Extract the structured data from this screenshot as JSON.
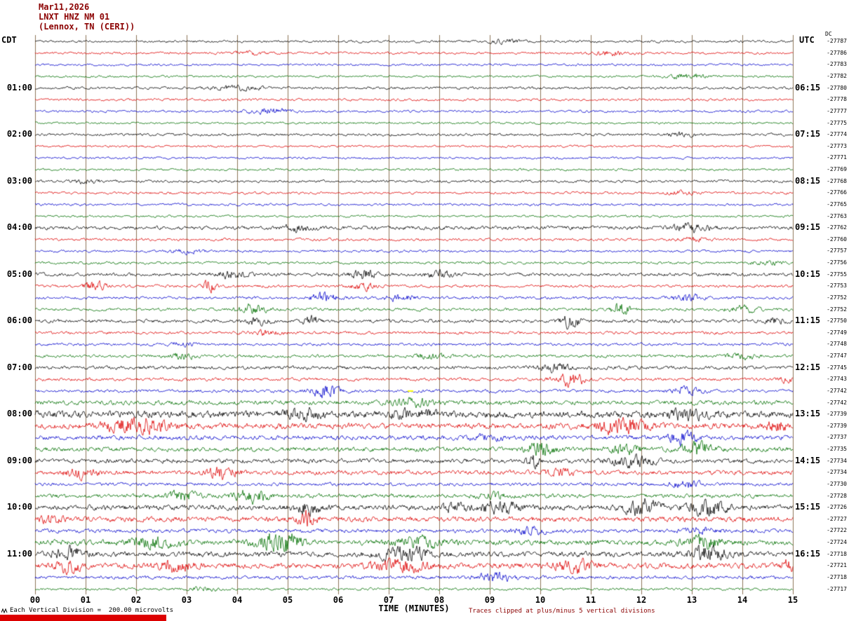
{
  "header": {
    "date": "Mar11,2026",
    "station": "LNXT HNZ NM 01",
    "location": "(Lennox, TN (CERI))",
    "left_tz": "CDT",
    "right_tz": "UTC",
    "dc_label": "DC"
  },
  "footer": {
    "scale_note": "Each Vertical Division =  200.00 microvolts",
    "xlabel": "TIME (MINUTES)",
    "clip_note": "Traces clipped at plus/minus 5 vertical divisions"
  },
  "colors": {
    "black": "#000000",
    "red": "#dd0000",
    "blue": "#0000cc",
    "green": "#007000",
    "grid": "#8d7558",
    "title": "#8b0000",
    "marker_yellow": "#ffff00"
  },
  "chart_data": {
    "type": "line",
    "subtype": "helicorder-seismogram",
    "title": "LNXT HNZ NM 01 (Lennox, TN (CERI)) Mar11,2026",
    "xlabel": "TIME (MINUTES)",
    "x_range_minutes": [
      0,
      15
    ],
    "x_ticks": [
      "00",
      "01",
      "02",
      "03",
      "04",
      "05",
      "06",
      "07",
      "08",
      "09",
      "10",
      "11",
      "12",
      "13",
      "14",
      "15"
    ],
    "minutes_per_row": 15,
    "rows_per_hour": 4,
    "left_time_labels": [
      "01:00",
      "02:00",
      "03:00",
      "04:00",
      "05:00",
      "06:00",
      "07:00",
      "08:00",
      "09:00",
      "10:00",
      "11:00"
    ],
    "right_time_labels": [
      "06:15",
      "07:15",
      "08:15",
      "09:15",
      "10:15",
      "11:15",
      "12:15",
      "13:15",
      "14:15",
      "15:15",
      "16:15"
    ],
    "markers": [
      {
        "row": 30,
        "min": 7.43,
        "color": "#ffff00"
      }
    ],
    "rows": [
      {
        "offset": "-27787",
        "color": "black",
        "amp": 1.3,
        "events": [
          [
            9.3,
            2,
            0.2
          ]
        ]
      },
      {
        "offset": "-27786",
        "color": "red",
        "amp": 1.3,
        "events": [
          [
            11.4,
            2,
            0.3
          ],
          [
            4.2,
            2,
            0.2
          ]
        ]
      },
      {
        "offset": "-27783",
        "color": "blue",
        "amp": 1.2,
        "events": []
      },
      {
        "offset": "-27782",
        "color": "green",
        "amp": 1.2,
        "events": [
          [
            12.9,
            3,
            0.25
          ]
        ]
      },
      {
        "cdt": "01:00",
        "utc": "06:15",
        "offset": "-27780",
        "color": "black",
        "amp": 1.4,
        "events": [
          [
            4.0,
            2,
            0.3
          ]
        ]
      },
      {
        "offset": "-27778",
        "color": "red",
        "amp": 1.3,
        "events": []
      },
      {
        "offset": "-27777",
        "color": "blue",
        "amp": 1.3,
        "events": [
          [
            4.6,
            3,
            0.3
          ]
        ]
      },
      {
        "offset": "-27775",
        "color": "green",
        "amp": 1.2,
        "events": []
      },
      {
        "cdt": "02:00",
        "utc": "07:15",
        "offset": "-27774",
        "color": "black",
        "amp": 1.4,
        "events": [
          [
            12.8,
            2,
            0.2
          ]
        ]
      },
      {
        "offset": "-27773",
        "color": "red",
        "amp": 1.2,
        "events": []
      },
      {
        "offset": "-27771",
        "color": "blue",
        "amp": 1.2,
        "events": []
      },
      {
        "offset": "-27769",
        "color": "green",
        "amp": 1.2,
        "events": []
      },
      {
        "cdt": "03:00",
        "utc": "08:15",
        "offset": "-27768",
        "color": "black",
        "amp": 1.4,
        "events": [
          [
            1.0,
            2,
            0.2
          ]
        ]
      },
      {
        "offset": "-27766",
        "color": "red",
        "amp": 1.3,
        "events": [
          [
            12.8,
            2,
            0.2
          ]
        ]
      },
      {
        "offset": "-27765",
        "color": "blue",
        "amp": 1.3,
        "events": []
      },
      {
        "offset": "-27763",
        "color": "green",
        "amp": 1.2,
        "events": []
      },
      {
        "cdt": "04:00",
        "utc": "09:15",
        "offset": "-27762",
        "color": "black",
        "amp": 2.0,
        "events": [
          [
            5.2,
            3,
            0.25
          ],
          [
            13.0,
            4,
            0.25
          ]
        ]
      },
      {
        "offset": "-27760",
        "color": "red",
        "amp": 1.4,
        "events": [
          [
            13.0,
            2,
            0.2
          ]
        ]
      },
      {
        "offset": "-27757",
        "color": "blue",
        "amp": 1.3,
        "events": [
          [
            3.0,
            2,
            0.2
          ]
        ]
      },
      {
        "offset": "-27756",
        "color": "green",
        "amp": 1.4,
        "events": [
          [
            14.5,
            3,
            0.2
          ]
        ]
      },
      {
        "cdt": "05:00",
        "utc": "10:15",
        "offset": "-27755",
        "color": "black",
        "amp": 1.8,
        "events": [
          [
            3.9,
            4,
            0.2
          ],
          [
            6.5,
            5,
            0.15
          ],
          [
            8.0,
            4,
            0.2
          ]
        ]
      },
      {
        "offset": "-27753",
        "color": "red",
        "amp": 1.5,
        "events": [
          [
            1.2,
            5,
            0.15
          ],
          [
            3.45,
            9,
            0.08
          ],
          [
            6.5,
            4,
            0.15
          ]
        ]
      },
      {
        "offset": "-27752",
        "color": "blue",
        "amp": 1.5,
        "events": [
          [
            5.75,
            5,
            0.2
          ],
          [
            7.2,
            3,
            0.2
          ],
          [
            12.9,
            4,
            0.2
          ]
        ]
      },
      {
        "offset": "-27752",
        "color": "green",
        "amp": 1.6,
        "events": [
          [
            4.3,
            5,
            0.2
          ],
          [
            11.6,
            8,
            0.12
          ],
          [
            14.0,
            3,
            0.2
          ]
        ]
      },
      {
        "cdt": "06:00",
        "utc": "11:15",
        "offset": "-27750",
        "color": "black",
        "amp": 1.8,
        "events": [
          [
            4.4,
            4,
            0.15
          ],
          [
            5.45,
            7,
            0.1
          ],
          [
            10.6,
            8,
            0.12
          ],
          [
            14.6,
            3,
            0.15
          ]
        ]
      },
      {
        "offset": "-27749",
        "color": "red",
        "amp": 1.6,
        "events": [
          [
            4.5,
            3,
            0.2
          ]
        ]
      },
      {
        "offset": "-27748",
        "color": "blue",
        "amp": 1.5,
        "events": [
          [
            2.9,
            2,
            0.2
          ]
        ]
      },
      {
        "offset": "-27747",
        "color": "green",
        "amp": 1.6,
        "events": [
          [
            2.9,
            3,
            0.2
          ],
          [
            7.8,
            3,
            0.2
          ],
          [
            14.0,
            3,
            0.2
          ]
        ]
      },
      {
        "cdt": "07:00",
        "utc": "12:15",
        "offset": "-27745",
        "color": "black",
        "amp": 1.9,
        "events": [
          [
            10.3,
            4,
            0.25
          ]
        ]
      },
      {
        "offset": "-27743",
        "color": "red",
        "amp": 1.7,
        "events": [
          [
            10.6,
            7,
            0.2
          ],
          [
            14.9,
            4,
            0.1
          ]
        ]
      },
      {
        "offset": "-27742",
        "color": "blue",
        "amp": 1.7,
        "events": [
          [
            5.75,
            8,
            0.18
          ],
          [
            12.9,
            4,
            0.2
          ]
        ]
      },
      {
        "offset": "-27742",
        "color": "green",
        "amp": 2.4,
        "events": [
          [
            7.5,
            4,
            0.3
          ]
        ]
      },
      {
        "cdt": "08:00",
        "utc": "13:15",
        "offset": "-27739",
        "color": "black",
        "amp": 3.8,
        "events": [
          [
            5.3,
            4,
            0.3
          ],
          [
            7.5,
            4,
            0.3
          ],
          [
            12.9,
            4,
            0.3
          ]
        ]
      },
      {
        "offset": "-27739",
        "color": "red",
        "amp": 3.2,
        "events": [
          [
            1.8,
            7,
            0.3
          ],
          [
            2.3,
            7,
            0.2
          ],
          [
            11.6,
            8,
            0.3
          ],
          [
            14.7,
            5,
            0.15
          ]
        ]
      },
      {
        "offset": "-27737",
        "color": "blue",
        "amp": 2.4,
        "events": [
          [
            9.0,
            3,
            0.2
          ],
          [
            12.8,
            6,
            0.2
          ]
        ]
      },
      {
        "offset": "-27735",
        "color": "green",
        "amp": 2.4,
        "events": [
          [
            10.0,
            7,
            0.2
          ],
          [
            11.7,
            5,
            0.2
          ],
          [
            13.1,
            7,
            0.22
          ]
        ]
      },
      {
        "cdt": "09:00",
        "utc": "14:15",
        "offset": "-27734",
        "color": "black",
        "amp": 2.4,
        "events": [
          [
            9.85,
            9,
            0.08
          ],
          [
            11.8,
            5,
            0.3
          ]
        ]
      },
      {
        "offset": "-27734",
        "color": "red",
        "amp": 2.4,
        "events": [
          [
            0.9,
            5,
            0.2
          ],
          [
            3.7,
            6,
            0.2
          ],
          [
            10.4,
            3,
            0.2
          ]
        ]
      },
      {
        "offset": "-27730",
        "color": "blue",
        "amp": 1.8,
        "events": [
          [
            12.9,
            4,
            0.2
          ]
        ]
      },
      {
        "offset": "-27728",
        "color": "green",
        "amp": 2.2,
        "events": [
          [
            2.9,
            5,
            0.2
          ],
          [
            4.3,
            7,
            0.22
          ],
          [
            9.0,
            3,
            0.2
          ]
        ]
      },
      {
        "cdt": "10:00",
        "utc": "15:15",
        "offset": "-27726",
        "color": "black",
        "amp": 2.8,
        "events": [
          [
            5.4,
            6,
            0.2
          ],
          [
            8.35,
            5,
            0.2
          ],
          [
            9.2,
            7,
            0.25
          ],
          [
            12.0,
            9,
            0.25
          ],
          [
            13.3,
            9,
            0.25
          ]
        ]
      },
      {
        "offset": "-27727",
        "color": "red",
        "amp": 2.8,
        "events": [
          [
            0.3,
            4,
            0.15
          ],
          [
            5.4,
            9,
            0.12
          ]
        ]
      },
      {
        "offset": "-27722",
        "color": "blue",
        "amp": 2.1,
        "events": [
          [
            9.8,
            4,
            0.2
          ],
          [
            13.2,
            4,
            0.2
          ]
        ]
      },
      {
        "offset": "-27724",
        "color": "green",
        "amp": 2.8,
        "events": [
          [
            2.3,
            5,
            0.35
          ],
          [
            4.7,
            8,
            0.25
          ],
          [
            5.0,
            7,
            0.2
          ],
          [
            7.6,
            5,
            0.35
          ],
          [
            13.2,
            7,
            0.25
          ]
        ]
      },
      {
        "cdt": "11:00",
        "utc": "16:15",
        "offset": "-27718",
        "color": "black",
        "amp": 2.8,
        "events": [
          [
            0.65,
            9,
            0.18
          ],
          [
            7.3,
            8,
            0.35
          ],
          [
            13.3,
            8,
            0.25
          ]
        ]
      },
      {
        "offset": "-27721",
        "color": "red",
        "amp": 2.9,
        "events": [
          [
            0.65,
            8,
            0.18
          ],
          [
            2.8,
            6,
            0.25
          ],
          [
            7.2,
            7,
            0.35
          ],
          [
            10.7,
            6,
            0.25
          ],
          [
            14.9,
            7,
            0.1
          ]
        ]
      },
      {
        "offset": "-27718",
        "color": "blue",
        "amp": 1.8,
        "events": [
          [
            9.1,
            5,
            0.25
          ]
        ]
      },
      {
        "offset": "-27717",
        "color": "green",
        "amp": 1.4,
        "events": [
          [
            3.3,
            2,
            0.2
          ]
        ]
      }
    ]
  }
}
